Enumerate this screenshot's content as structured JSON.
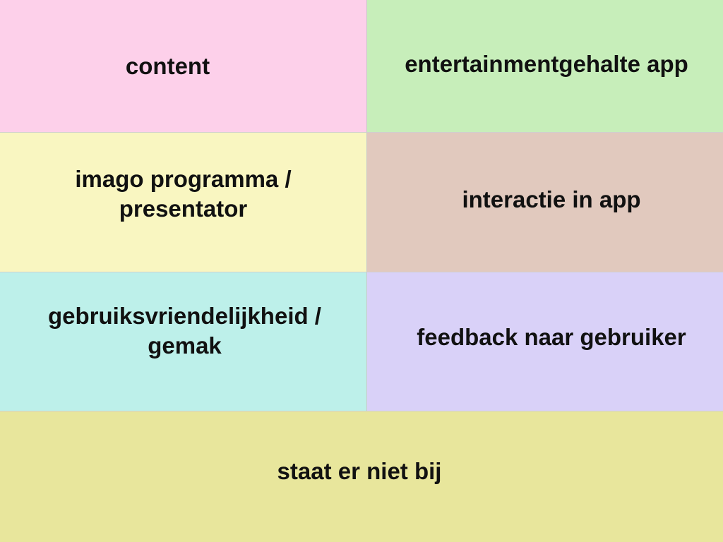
{
  "tiles": [
    {
      "id": "content",
      "label": "content",
      "color": "#FDD0EA"
    },
    {
      "id": "entertainment",
      "label": "entertainmentgehalte app",
      "color": "#C7EEBA"
    },
    {
      "id": "imago",
      "label": "imago programma / presentator",
      "color": "#F9F6C1"
    },
    {
      "id": "interactie",
      "label": "interactie in app",
      "color": "#E1C9BE"
    },
    {
      "id": "gebruiks",
      "label": "gebruiksvriendelijkheid / gemak",
      "color": "#BDF0EA"
    },
    {
      "id": "feedback",
      "label": "feedback naar gebruiker",
      "color": "#D9D1F8"
    },
    {
      "id": "staat",
      "label": "staat er niet bij",
      "color": "#E8E69C"
    }
  ]
}
